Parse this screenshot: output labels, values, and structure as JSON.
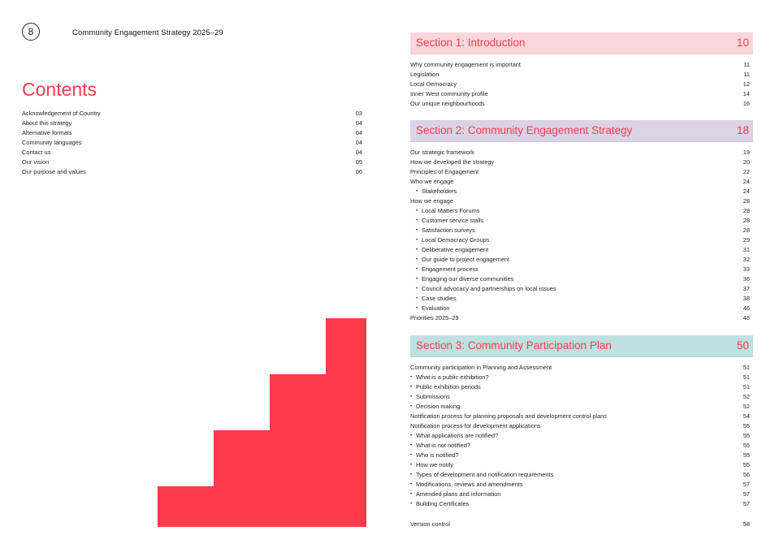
{
  "header": {
    "page_number": "8",
    "doc_title": "Community Engagement Strategy 2025–29"
  },
  "contents": {
    "heading": "Contents",
    "items": [
      {
        "label": "Acknowledgement of Country",
        "page": "03"
      },
      {
        "label": "About this strategy",
        "page": "04"
      },
      {
        "label": "Alternative formats",
        "page": "04"
      },
      {
        "label": "Community languages",
        "page": "04"
      },
      {
        "label": "Contact us",
        "page": "04"
      },
      {
        "label": "Our vision",
        "page": "05"
      },
      {
        "label": "Our purpose and values",
        "page": "06"
      }
    ]
  },
  "sections": [
    {
      "title": "Section 1: Introduction",
      "page": "10",
      "color": "#fbd5dc",
      "items": [
        {
          "label": "Why community engagement is important",
          "page": "11",
          "level": 0
        },
        {
          "label": "Legislation",
          "page": "11",
          "level": 0
        },
        {
          "label": "Local Democracy",
          "page": "12",
          "level": 0
        },
        {
          "label": "Inner West community profile",
          "page": "14",
          "level": 0
        },
        {
          "label": "Our unique neighbourhoods",
          "page": "16",
          "level": 0
        }
      ]
    },
    {
      "title": "Section 2: Community Engagement Strategy",
      "page": "18",
      "color": "#ddd1e6",
      "items": [
        {
          "label": "Our strategic framework",
          "page": "19",
          "level": 0
        },
        {
          "label": "How we developed the strategy",
          "page": "20",
          "level": 0
        },
        {
          "label": "Principles of Engagement",
          "page": "22",
          "level": 0
        },
        {
          "label": "Who we engage",
          "page": "24",
          "level": 0
        },
        {
          "label": "Stakeholders",
          "page": "24",
          "level": 2
        },
        {
          "label": "How we engage",
          "page": "28",
          "level": 0
        },
        {
          "label": "Local Matters Forums",
          "page": "28",
          "level": 2
        },
        {
          "label": "Customer service stalls",
          "page": "28",
          "level": 2
        },
        {
          "label": "Satisfaction surveys",
          "page": "28",
          "level": 2
        },
        {
          "label": "Local Democracy Groups",
          "page": "29",
          "level": 2
        },
        {
          "label": "Deliberative engagement",
          "page": "31",
          "level": 2
        },
        {
          "label": "Our guide to project engagement",
          "page": "32",
          "level": 2
        },
        {
          "label": "Engagement process",
          "page": "33",
          "level": 2
        },
        {
          "label": "Engaging our diverse communities",
          "page": "36",
          "level": 2
        },
        {
          "label": "Council advocacy and partnerships on local issues",
          "page": "37",
          "level": 2
        },
        {
          "label": "Case studies",
          "page": "38",
          "level": 2
        },
        {
          "label": "Evaluation",
          "page": "46",
          "level": 2
        },
        {
          "label": "Priorities 2025–29",
          "page": "48",
          "level": 0
        }
      ]
    },
    {
      "title": "Section 3: Community Participation Plan",
      "page": "50",
      "color": "#bfe0e1",
      "items": [
        {
          "label": "Community participation in Planning and Assessment",
          "page": "51",
          "level": 0
        },
        {
          "label": "What is a public exhibition?",
          "page": "51",
          "level": 1
        },
        {
          "label": "Public exhibition periods",
          "page": "51",
          "level": 1
        },
        {
          "label": "Submissions",
          "page": "52",
          "level": 1
        },
        {
          "label": "Decision making",
          "page": "52",
          "level": 1
        },
        {
          "label": "Notification process for planning proposals and development control plans",
          "page": "54",
          "level": 0
        },
        {
          "label": "Notification process for development applications",
          "page": "55",
          "level": 0
        },
        {
          "label": "What applications are notified?",
          "page": "55",
          "level": 1
        },
        {
          "label": "What is not notified?",
          "page": "55",
          "level": 1
        },
        {
          "label": "Who is notified?",
          "page": "55",
          "level": 1
        },
        {
          "label": "How we notify",
          "page": "55",
          "level": 1
        },
        {
          "label": "Types of development and notification requirements",
          "page": "56",
          "level": 1
        },
        {
          "label": "Modifications, reviews and amendments",
          "page": "57",
          "level": 1
        },
        {
          "label": "Amended plans and information",
          "page": "57",
          "level": 1
        },
        {
          "label": "Building Certificates",
          "page": "57",
          "level": 1
        }
      ]
    }
  ],
  "footer_items": [
    {
      "label": "Version control",
      "page": "58",
      "level": 0
    }
  ],
  "colors": {
    "accent": "#f03e4e",
    "stairs": "#fe3b4a"
  }
}
